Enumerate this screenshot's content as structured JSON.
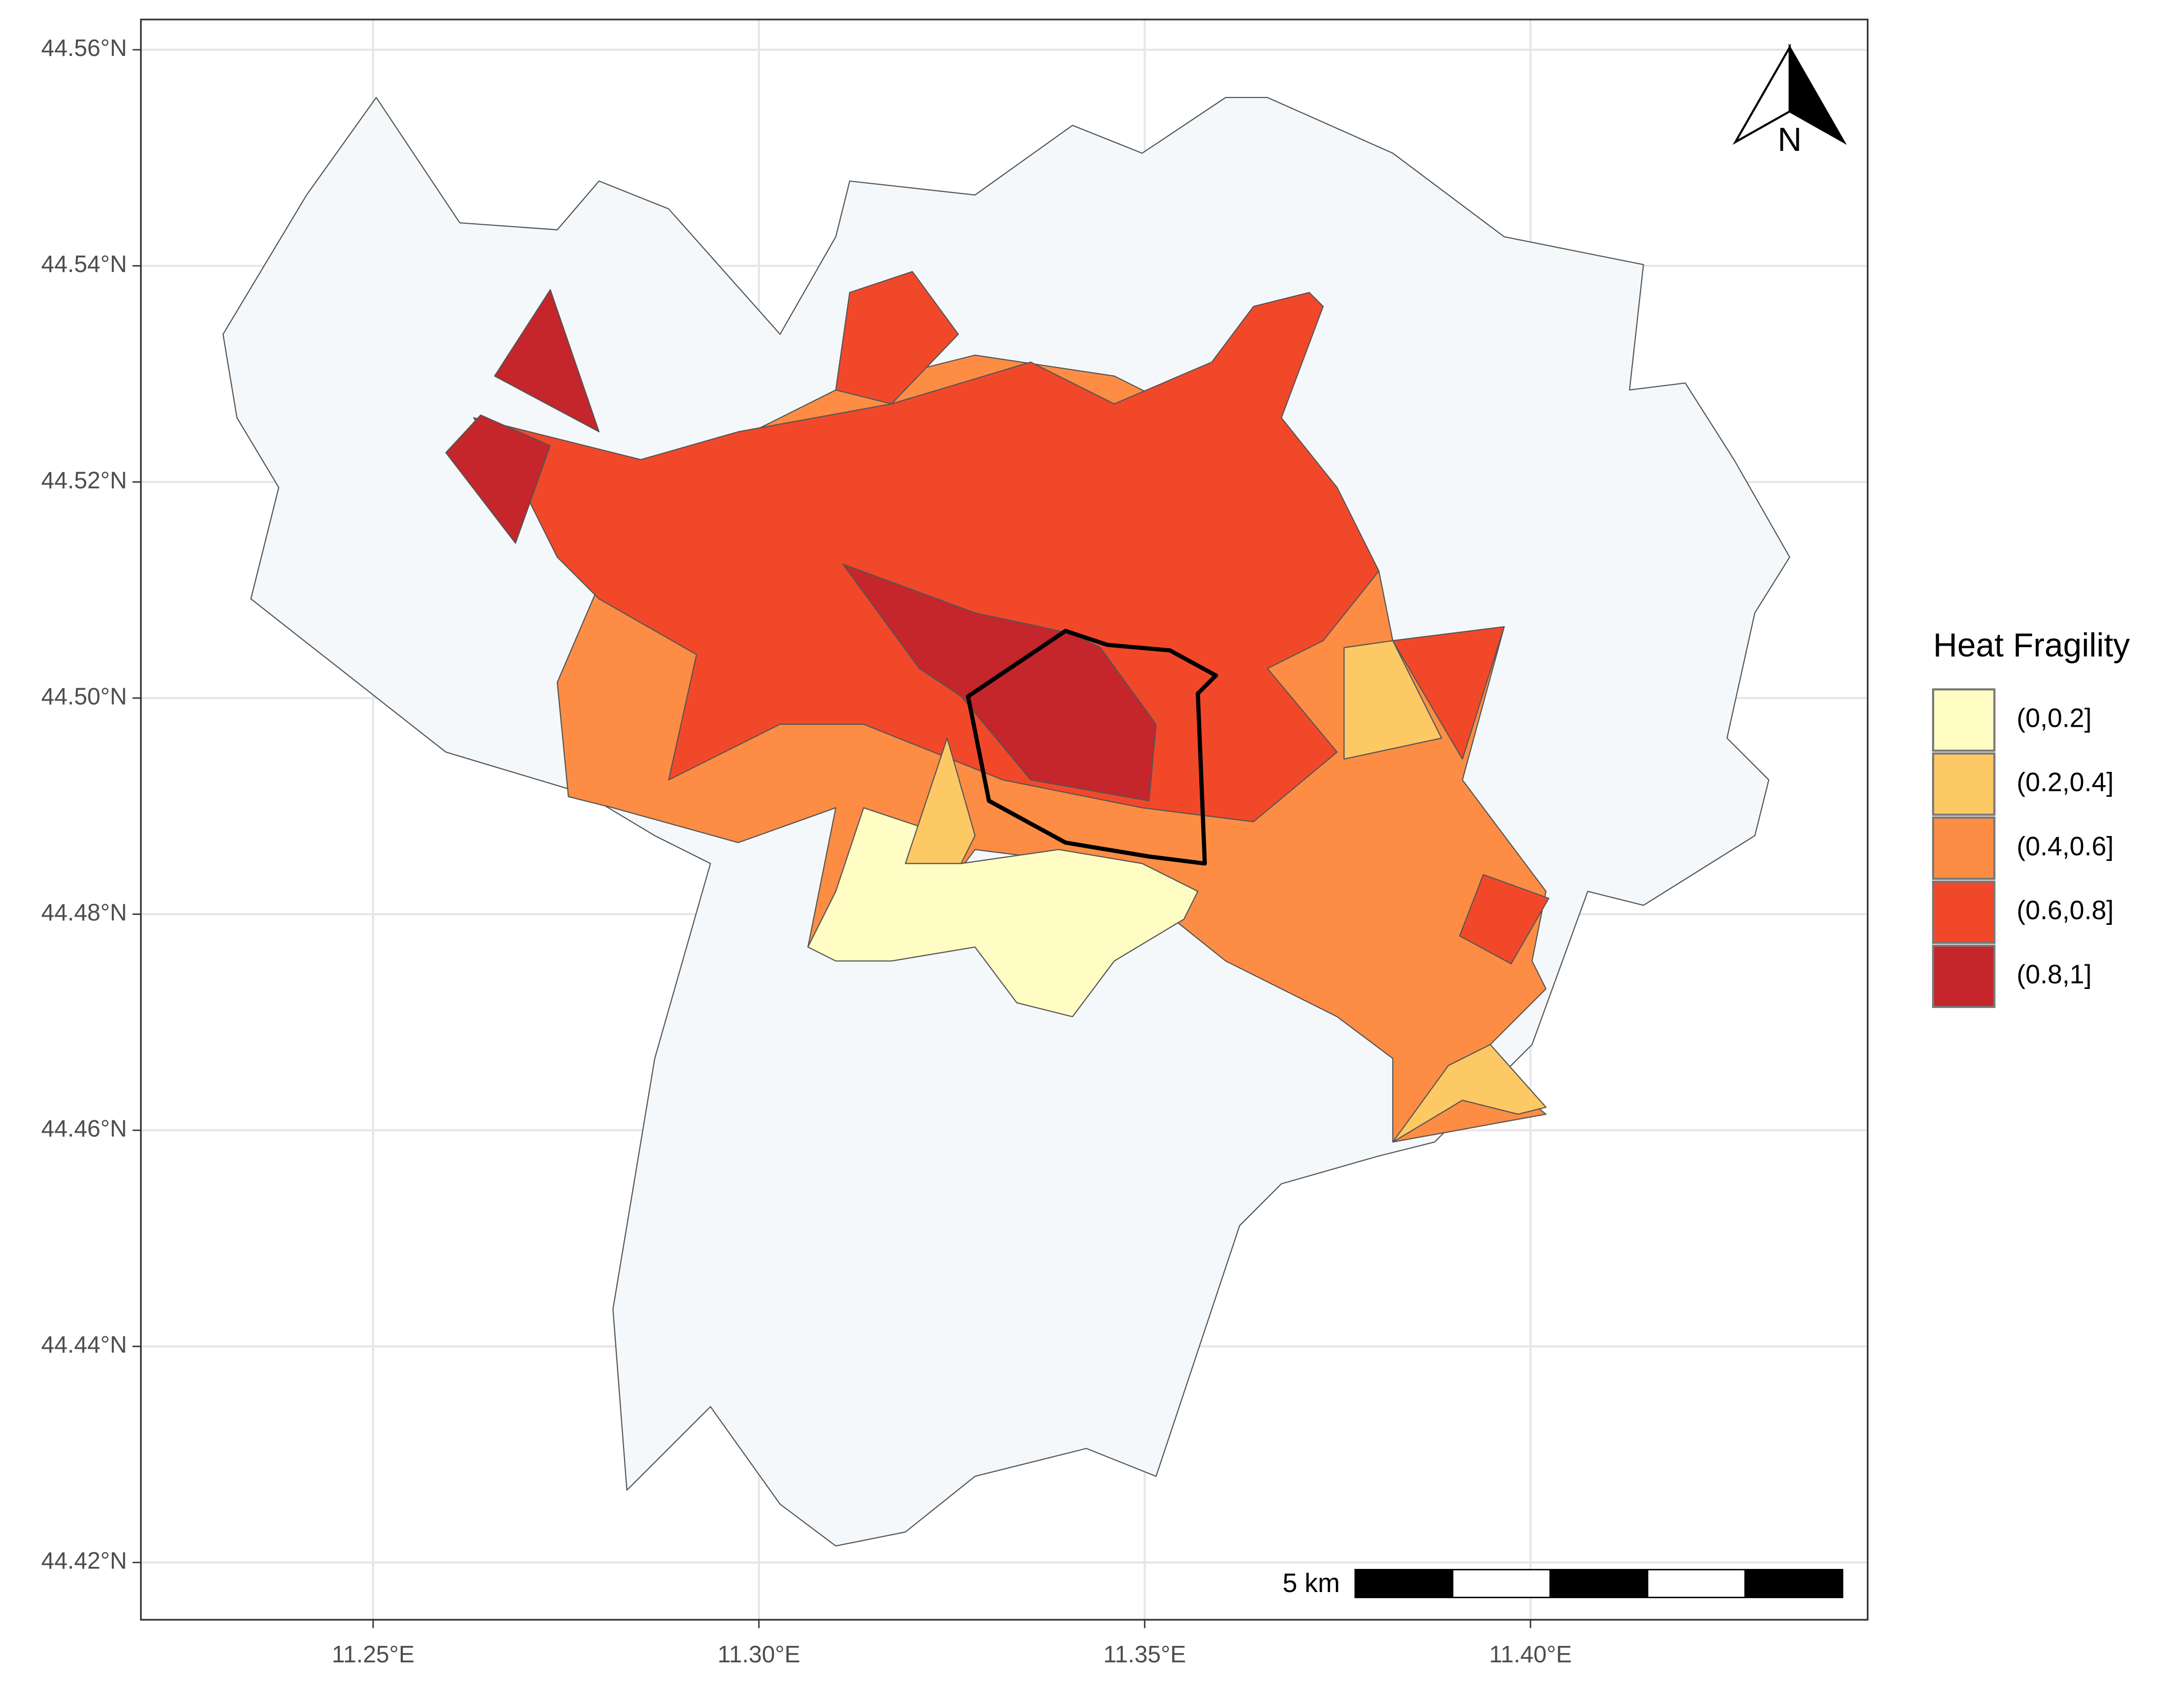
{
  "map": {
    "xlim": [
      11.2199,
      11.4437
    ],
    "ylim": [
      44.4147,
      44.5628
    ],
    "xticks": [
      {
        "value": 11.25,
        "label": "11.25°E"
      },
      {
        "value": 11.3,
        "label": "11.30°E"
      },
      {
        "value": 11.35,
        "label": "11.35°E"
      },
      {
        "value": 11.4,
        "label": "11.40°E"
      }
    ],
    "yticks": [
      {
        "value": 44.42,
        "label": "44.42°N"
      },
      {
        "value": 44.44,
        "label": "44.44°N"
      },
      {
        "value": 44.46,
        "label": "44.46°N"
      },
      {
        "value": 44.48,
        "label": "44.48°N"
      },
      {
        "value": 44.5,
        "label": "44.50°N"
      },
      {
        "value": 44.52,
        "label": "44.52°N"
      },
      {
        "value": 44.54,
        "label": "44.54°N"
      },
      {
        "value": 44.56,
        "label": "44.56°N"
      }
    ],
    "grid": true,
    "legend": {
      "title": "Heat Fragility",
      "entries": [
        {
          "label": "(0,0.2]",
          "color": "#fffcc4"
        },
        {
          "label": "(0.2,0.4]",
          "color": "#fdc965"
        },
        {
          "label": "(0.4,0.6]",
          "color": "#fd8d44"
        },
        {
          "label": "(0.6,0.8]",
          "color": "#f2482a"
        },
        {
          "label": "(0.8,1]",
          "color": "#c4262b"
        }
      ]
    },
    "scale_bar": "5 km",
    "north_arrow": "N"
  }
}
